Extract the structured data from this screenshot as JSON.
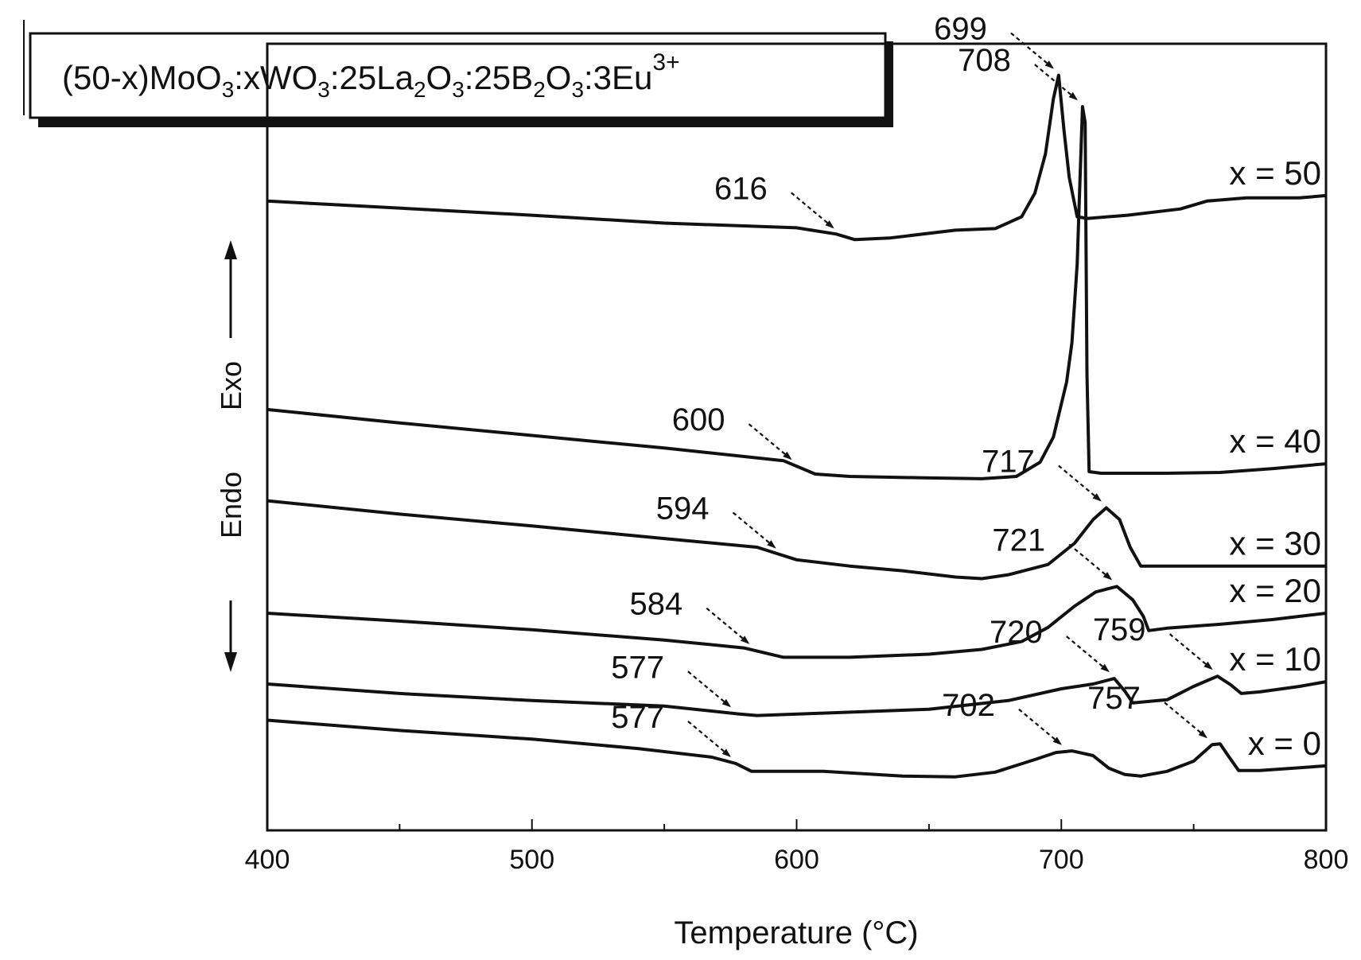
{
  "chart_data": {
    "type": "line",
    "title": "(50-x)MoO3:xWO3:25La2O3:25B2O3:3Eu3+",
    "title_parts": [
      {
        "t": "(50-x)MoO"
      },
      {
        "t": "3",
        "sub": true
      },
      {
        "t": ":xWO"
      },
      {
        "t": "3",
        "sub": true
      },
      {
        "t": ":25La"
      },
      {
        "t": "2",
        "sub": true
      },
      {
        "t": "O"
      },
      {
        "t": "3",
        "sub": true
      },
      {
        "t": ":25B"
      },
      {
        "t": "2",
        "sub": true
      },
      {
        "t": "O"
      },
      {
        "t": "3",
        "sub": true
      },
      {
        "t": ":3Eu"
      },
      {
        "t": "3+",
        "sup": true
      }
    ],
    "xlabel": "Temperature (°C)",
    "xlim": [
      400,
      800
    ],
    "xticks": [
      400,
      500,
      600,
      700,
      800
    ],
    "ylim": [
      0,
      100
    ],
    "grid": false,
    "side_label": {
      "endo": "Endo",
      "exo": "Exo"
    },
    "series": [
      {
        "name": "x = 50",
        "points": [
          [
            400,
            80
          ],
          [
            500,
            78.2
          ],
          [
            550,
            77.2
          ],
          [
            600,
            76.6
          ],
          [
            615,
            75.8
          ],
          [
            622,
            75.1
          ],
          [
            635,
            75.3
          ],
          [
            660,
            76.3
          ],
          [
            675,
            76.5
          ],
          [
            685,
            78
          ],
          [
            690,
            81
          ],
          [
            694,
            86
          ],
          [
            697,
            93
          ],
          [
            699,
            96
          ],
          [
            701,
            89
          ],
          [
            703,
            83
          ],
          [
            706,
            78
          ],
          [
            710,
            77.8
          ],
          [
            725,
            78.2
          ],
          [
            745,
            79
          ],
          [
            755,
            80
          ],
          [
            770,
            80.4
          ],
          [
            790,
            80.4
          ],
          [
            800,
            80.7
          ]
        ],
        "peaks": [
          {
            "label": "616",
            "x": 616
          },
          {
            "label": "699",
            "x": 699
          }
        ]
      },
      {
        "name": "x = 40",
        "points": [
          [
            400,
            53.5
          ],
          [
            450,
            51.8
          ],
          [
            500,
            50.2
          ],
          [
            550,
            48.6
          ],
          [
            595,
            47
          ],
          [
            607,
            45.3
          ],
          [
            620,
            45
          ],
          [
            650,
            44.8
          ],
          [
            670,
            44.7
          ],
          [
            683,
            45
          ],
          [
            692,
            46.8
          ],
          [
            697,
            50
          ],
          [
            702,
            57
          ],
          [
            704,
            62
          ],
          [
            706,
            72
          ],
          [
            707,
            82
          ],
          [
            708,
            92
          ],
          [
            709,
            90
          ],
          [
            709.7,
            58
          ],
          [
            710.5,
            45.6
          ],
          [
            715,
            45.4
          ],
          [
            740,
            45.4
          ],
          [
            760,
            45.5
          ],
          [
            780,
            46
          ],
          [
            800,
            46.6
          ]
        ],
        "peaks": [
          {
            "label": "600",
            "x": 600
          },
          {
            "label": "708",
            "x": 708
          }
        ]
      },
      {
        "name": "x = 30",
        "points": [
          [
            400,
            41.9
          ],
          [
            450,
            40.2
          ],
          [
            500,
            38.7
          ],
          [
            550,
            37.1
          ],
          [
            585,
            36
          ],
          [
            600,
            34.4
          ],
          [
            620,
            33.6
          ],
          [
            640,
            33
          ],
          [
            660,
            32.2
          ],
          [
            670,
            32
          ],
          [
            680,
            32.5
          ],
          [
            695,
            33.8
          ],
          [
            705,
            36.5
          ],
          [
            712,
            39.5
          ],
          [
            717,
            41
          ],
          [
            722,
            39.5
          ],
          [
            726,
            36
          ],
          [
            730,
            33.6
          ],
          [
            740,
            33.6
          ],
          [
            800,
            33.6
          ]
        ],
        "peaks": [
          {
            "label": "594",
            "x": 594
          },
          {
            "label": "717",
            "x": 717
          }
        ]
      },
      {
        "name": "x = 20",
        "points": [
          [
            400,
            27.6
          ],
          [
            450,
            26.6
          ],
          [
            500,
            25.5
          ],
          [
            550,
            24.2
          ],
          [
            580,
            23.2
          ],
          [
            595,
            22
          ],
          [
            620,
            22
          ],
          [
            650,
            22.4
          ],
          [
            670,
            23
          ],
          [
            685,
            24
          ],
          [
            695,
            25.8
          ],
          [
            705,
            28.5
          ],
          [
            713,
            30.3
          ],
          [
            721,
            31
          ],
          [
            727,
            29.3
          ],
          [
            731,
            27.2
          ],
          [
            733,
            25.4
          ],
          [
            740,
            25.7
          ],
          [
            760,
            26.2
          ],
          [
            780,
            26.8
          ],
          [
            800,
            27.6
          ]
        ],
        "peaks": [
          {
            "label": "584",
            "x": 584
          },
          {
            "label": "721",
            "x": 721
          }
        ]
      },
      {
        "name": "x = 10",
        "points": [
          [
            400,
            18.6
          ],
          [
            450,
            17.4
          ],
          [
            500,
            16.5
          ],
          [
            550,
            15.8
          ],
          [
            578,
            14.8
          ],
          [
            585,
            14.6
          ],
          [
            610,
            14.9
          ],
          [
            650,
            15.4
          ],
          [
            680,
            16.5
          ],
          [
            700,
            18
          ],
          [
            712,
            18.6
          ],
          [
            720,
            19.3
          ],
          [
            724,
            17.7
          ],
          [
            727,
            16.2
          ],
          [
            740,
            16.6
          ],
          [
            750,
            18.3
          ],
          [
            759,
            19.6
          ],
          [
            764,
            18.5
          ],
          [
            768,
            17.4
          ],
          [
            775,
            17.6
          ],
          [
            790,
            18.3
          ],
          [
            800,
            18.9
          ]
        ],
        "peaks": [
          {
            "label": "577",
            "x": 577
          },
          {
            "label": "720",
            "x": 720
          },
          {
            "label": "759",
            "x": 759
          }
        ]
      },
      {
        "name": "x = 0",
        "points": [
          [
            400,
            14
          ],
          [
            450,
            12.7
          ],
          [
            500,
            11.6
          ],
          [
            540,
            10.4
          ],
          [
            568,
            9.3
          ],
          [
            577,
            8.5
          ],
          [
            583,
            7.5
          ],
          [
            610,
            7.5
          ],
          [
            640,
            6.9
          ],
          [
            660,
            6.8
          ],
          [
            675,
            7.4
          ],
          [
            690,
            9
          ],
          [
            698,
            9.9
          ],
          [
            704,
            10.1
          ],
          [
            712,
            9.5
          ],
          [
            718,
            7.9
          ],
          [
            724,
            7.1
          ],
          [
            730,
            6.9
          ],
          [
            740,
            7.5
          ],
          [
            750,
            8.8
          ],
          [
            757,
            10.9
          ],
          [
            760,
            11
          ],
          [
            763,
            9.5
          ],
          [
            767,
            7.6
          ],
          [
            775,
            7.6
          ],
          [
            800,
            8.2
          ]
        ],
        "peaks": [
          {
            "label": "577",
            "x": 577
          },
          {
            "label": "702",
            "x": 702
          },
          {
            "label": "757",
            "x": 757
          }
        ]
      }
    ]
  }
}
